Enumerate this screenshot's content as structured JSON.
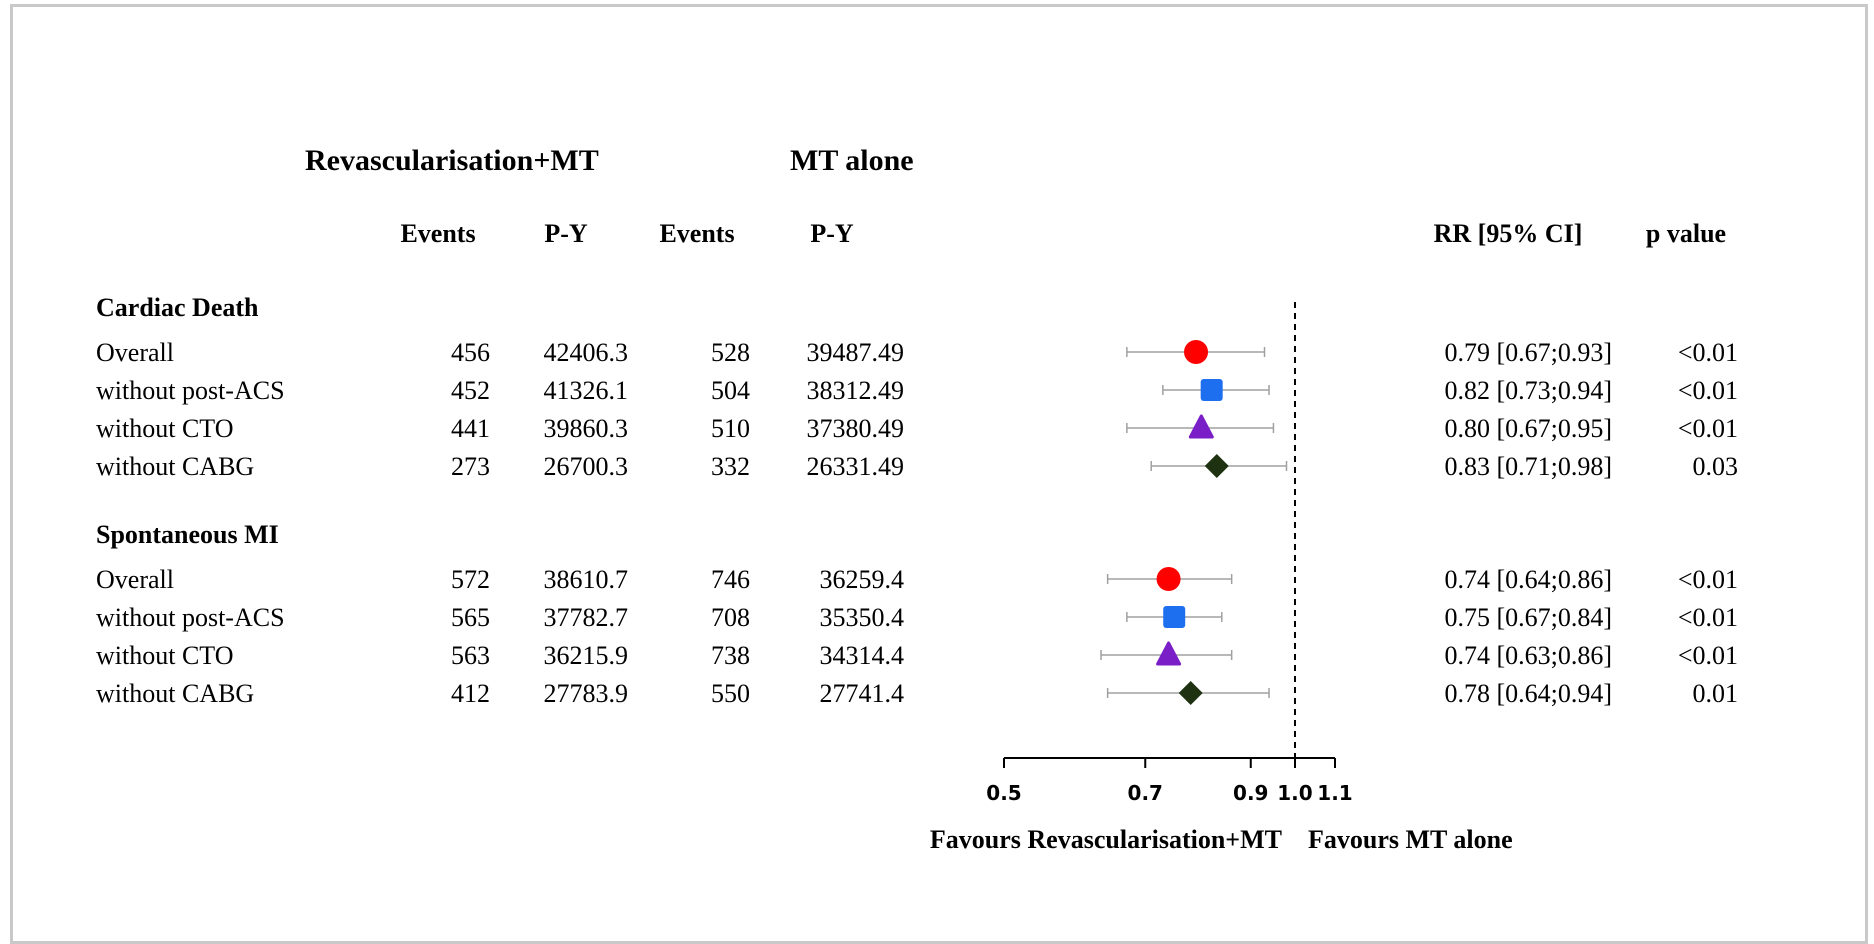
{
  "headers": {
    "group1": "Revascularisation+MT",
    "group2": "MT alone",
    "columns": [
      "Events",
      "P-Y",
      "Events",
      "P-Y"
    ],
    "rr": "RR [95% CI]",
    "pvalue": "p value"
  },
  "axis": {
    "ticks": [
      "0.5",
      "0.7",
      "0.9",
      "1.0",
      "1.1"
    ],
    "favours_left": "Favours Revascularisation+MT",
    "favours_right": "Favours MT alone"
  },
  "colors": {
    "overall": "#ff0000",
    "without_post_acs": "#1e6ef0",
    "without_cto": "#7a1ec8",
    "without_cabg": "#1e3212"
  },
  "chart_data": {
    "type": "forest",
    "xscale": "log",
    "xlim": [
      0.5,
      1.1
    ],
    "reference_line": 1.0,
    "groups": [
      {
        "title": "Cardiac Death",
        "rows": [
          {
            "label": "Overall",
            "events1": "456",
            "py1": "42406.3",
            "events2": "528",
            "py2": "39487.49",
            "rr": 0.79,
            "lo": 0.67,
            "hi": 0.93,
            "rr_text": "0.79 [0.67;0.93]",
            "p": "<0.01",
            "marker": "circle",
            "color_key": "overall"
          },
          {
            "label": "without post-ACS",
            "events1": "452",
            "py1": "41326.1",
            "events2": "504",
            "py2": "38312.49",
            "rr": 0.82,
            "lo": 0.73,
            "hi": 0.94,
            "rr_text": "0.82 [0.73;0.94]",
            "p": "<0.01",
            "marker": "square",
            "color_key": "without_post_acs"
          },
          {
            "label": "without CTO",
            "events1": "441",
            "py1": "39860.3",
            "events2": "510",
            "py2": "37380.49",
            "rr": 0.8,
            "lo": 0.67,
            "hi": 0.95,
            "rr_text": "0.80 [0.67;0.95]",
            "p": "<0.01",
            "marker": "triangle",
            "color_key": "without_cto"
          },
          {
            "label": "without CABG",
            "events1": "273",
            "py1": "26700.3",
            "events2": "332",
            "py2": "26331.49",
            "rr": 0.83,
            "lo": 0.71,
            "hi": 0.98,
            "rr_text": "0.83 [0.71;0.98]",
            "p": "0.03",
            "marker": "diamond",
            "color_key": "without_cabg"
          }
        ]
      },
      {
        "title": "Spontaneous MI",
        "rows": [
          {
            "label": "Overall",
            "events1": "572",
            "py1": "38610.7",
            "events2": "746",
            "py2": "36259.4",
            "rr": 0.74,
            "lo": 0.64,
            "hi": 0.86,
            "rr_text": "0.74 [0.64;0.86]",
            "p": "<0.01",
            "marker": "circle",
            "color_key": "overall"
          },
          {
            "label": "without post-ACS",
            "events1": "565",
            "py1": "37782.7",
            "events2": "708",
            "py2": "35350.4",
            "rr": 0.75,
            "lo": 0.67,
            "hi": 0.84,
            "rr_text": "0.75 [0.67;0.84]",
            "p": "<0.01",
            "marker": "square",
            "color_key": "without_post_acs"
          },
          {
            "label": "without CTO",
            "events1": "563",
            "py1": "36215.9",
            "events2": "738",
            "py2": "34314.4",
            "rr": 0.74,
            "lo": 0.63,
            "hi": 0.86,
            "rr_text": "0.74 [0.63;0.86]",
            "p": "<0.01",
            "marker": "triangle",
            "color_key": "without_cto"
          },
          {
            "label": "without CABG",
            "events1": "412",
            "py1": "27783.9",
            "events2": "550",
            "py2": "27741.4",
            "rr": 0.78,
            "lo": 0.64,
            "hi": 0.94,
            "rr_text": "0.78 [0.64;0.94]",
            "p": "0.01",
            "marker": "diamond",
            "color_key": "without_cabg"
          }
        ]
      }
    ]
  }
}
